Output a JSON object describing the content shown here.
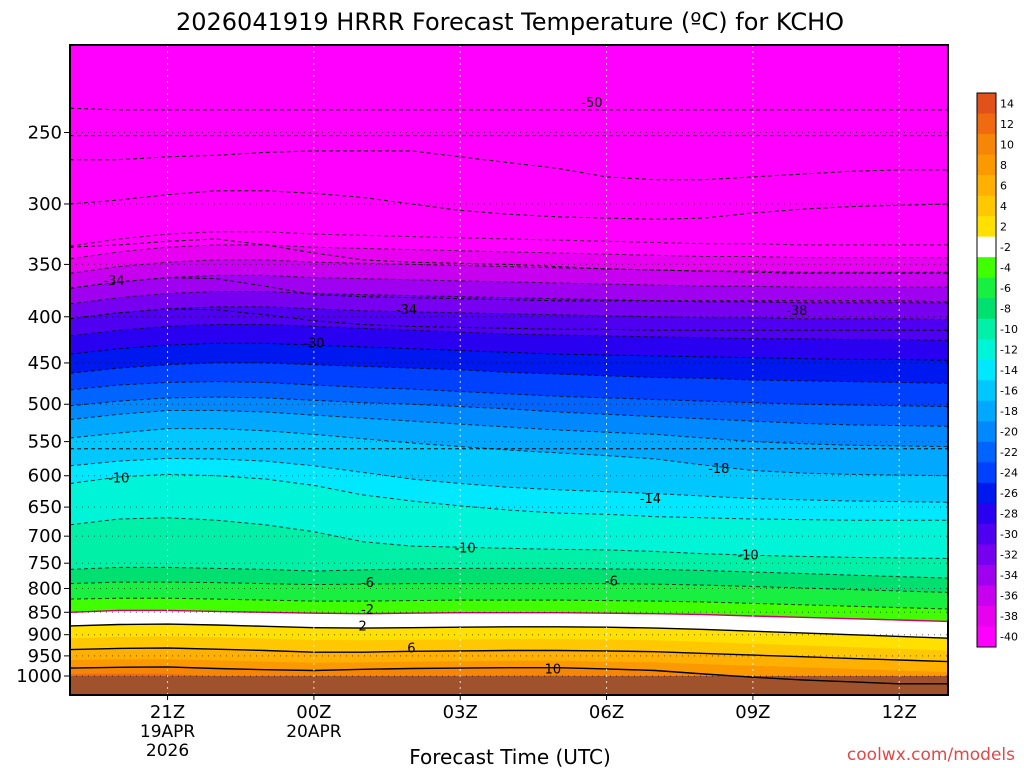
{
  "chart_data": {
    "type": "heatmap",
    "title": "2026041919 HRRR Forecast Temperature (ºC) for KCHO",
    "xlabel": "Forecast Time (UTC)",
    "ylabel": "",
    "x_ticks": [
      {
        "label": "21Z",
        "hour": 2,
        "sub": [
          "19APR",
          "2026"
        ]
      },
      {
        "label": "00Z",
        "hour": 5,
        "sub": [
          "20APR"
        ]
      },
      {
        "label": "03Z",
        "hour": 8,
        "sub": []
      },
      {
        "label": "06Z",
        "hour": 11,
        "sub": []
      },
      {
        "label": "09Z",
        "hour": 14,
        "sub": []
      },
      {
        "label": "12Z",
        "hour": 17,
        "sub": []
      }
    ],
    "y_ticks": [
      250,
      300,
      350,
      400,
      450,
      500,
      550,
      600,
      650,
      700,
      750,
      800,
      850,
      900,
      950,
      1000
    ],
    "x_range": [
      0,
      18
    ],
    "y_range_hpa": [
      200,
      1020
    ],
    "y_scale": "log",
    "surface_pressure_hpa": 1000,
    "surface_color": "#a0522d",
    "hours": [
      0,
      1,
      2,
      3,
      4,
      5,
      6,
      7,
      8,
      9,
      10,
      11,
      12,
      13,
      14,
      15,
      16,
      17,
      18
    ],
    "isotherms": [
      {
        "t": 14,
        "p": [
          1020,
          1020,
          1020,
          1020,
          1020,
          1020,
          1020,
          1020,
          1020,
          1020,
          1020,
          1020,
          1020,
          1020,
          1020,
          1020,
          1020,
          1020,
          1020
        ]
      },
      {
        "t": 12,
        "p": [
          995,
          994,
          995,
          1000,
          1003,
          1005,
          1003,
          1001,
          1000,
          999,
          999,
          1002,
          1008,
          1020,
          1020,
          1020,
          1020,
          1020,
          1020
        ]
      },
      {
        "t": 10,
        "p": [
          980,
          978,
          977,
          981,
          984,
          986,
          983,
          981,
          980,
          979,
          979,
          982,
          986,
          995,
          1003,
          1010,
          1015,
          1020,
          1020
        ]
      },
      {
        "t": 8,
        "p": [
          960,
          958,
          958,
          961,
          964,
          967,
          966,
          964,
          963,
          962,
          962,
          964,
          966,
          970,
          974,
          978,
          982,
          986,
          990
        ]
      },
      {
        "t": 6,
        "p": [
          935,
          932,
          931,
          934,
          937,
          941,
          941,
          939,
          938,
          937,
          937,
          938,
          940,
          944,
          948,
          952,
          956,
          960,
          964
        ]
      },
      {
        "t": 4,
        "p": [
          908,
          905,
          904,
          906,
          909,
          912,
          913,
          912,
          911,
          910,
          910,
          911,
          913,
          917,
          921,
          925,
          929,
          933,
          937
        ]
      },
      {
        "t": 2,
        "p": [
          880,
          877,
          876,
          878,
          881,
          884,
          885,
          884,
          883,
          882,
          882,
          883,
          885,
          888,
          892,
          896,
          900,
          904,
          908
        ]
      },
      {
        "t": -2,
        "p": [
          850,
          846,
          846,
          848,
          850,
          852,
          853,
          852,
          851,
          851,
          851,
          852,
          853,
          855,
          858,
          861,
          864,
          867,
          870
        ]
      },
      {
        "t": -4,
        "p": [
          822,
          820,
          820,
          822,
          824,
          826,
          826,
          825,
          824,
          824,
          824,
          825,
          826,
          828,
          831,
          834,
          837,
          840,
          843
        ]
      },
      {
        "t": -6,
        "p": [
          790,
          787,
          787,
          788,
          790,
          792,
          791,
          790,
          790,
          790,
          790,
          790,
          791,
          793,
          796,
          799,
          802,
          805,
          808
        ]
      },
      {
        "t": -8,
        "p": [
          762,
          758,
          758,
          760,
          762,
          765,
          763,
          761,
          760,
          760,
          760,
          761,
          762,
          764,
          767,
          770,
          773,
          776,
          779
        ]
      },
      {
        "t": -10,
        "p": [
          680,
          670,
          668,
          672,
          680,
          692,
          710,
          718,
          720,
          722,
          724,
          725,
          728,
          732,
          735,
          737,
          739,
          740,
          741
        ]
      },
      {
        "t": -12,
        "p": [
          612,
          602,
          598,
          600,
          605,
          615,
          630,
          640,
          648,
          655,
          660,
          662,
          666,
          668,
          670,
          671,
          672,
          672,
          672
        ]
      },
      {
        "t": -14,
        "p": [
          585,
          578,
          574,
          575,
          578,
          585,
          595,
          605,
          612,
          618,
          622,
          625,
          628,
          632,
          636,
          638,
          640,
          641,
          642
        ]
      },
      {
        "t": -16,
        "p": [
          545,
          538,
          532,
          532,
          535,
          540,
          546,
          552,
          557,
          562,
          566,
          570,
          575,
          584,
          592,
          596,
          598,
          599,
          600
        ]
      },
      {
        "t": -18,
        "p": [
          520,
          513,
          508,
          508,
          510,
          514,
          518,
          522,
          526,
          530,
          534,
          537,
          540,
          545,
          550,
          553,
          555,
          556,
          557
        ]
      },
      {
        "t": -20,
        "p": [
          502,
          496,
          492,
          491,
          492,
          495,
          498,
          500,
          503,
          506,
          510,
          513,
          516,
          519,
          522,
          525,
          527,
          528,
          529
        ]
      },
      {
        "t": -22,
        "p": [
          482,
          476,
          473,
          472,
          473,
          476,
          479,
          481,
          484,
          487,
          490,
          492,
          494,
          496,
          498,
          500,
          501,
          502,
          503
        ]
      },
      {
        "t": -24,
        "p": [
          462,
          456,
          452,
          450,
          450,
          452,
          454,
          456,
          458,
          461,
          463,
          465,
          467,
          468,
          470,
          471,
          472,
          473,
          474
        ]
      },
      {
        "t": -26,
        "p": [
          440,
          434,
          430,
          428,
          428,
          430,
          432,
          434,
          436,
          438,
          440,
          441,
          442,
          443,
          444,
          445,
          446,
          446,
          447
        ]
      },
      {
        "t": -28,
        "p": [
          420,
          414,
          410,
          408,
          408,
          410,
          412,
          414,
          416,
          418,
          419,
          420,
          421,
          422,
          423,
          423,
          424,
          424,
          425
        ]
      },
      {
        "t": -30,
        "p": [
          402,
          396,
          392,
          390,
          390,
          392,
          394,
          395,
          396,
          397,
          398,
          399,
          400,
          401,
          401,
          402,
          402,
          402,
          403
        ]
      },
      {
        "t": -32,
        "p": [
          387,
          381,
          377,
          375,
          375,
          377,
          378,
          379,
          380,
          381,
          382,
          383,
          384,
          385,
          385,
          386,
          386,
          386,
          386
        ]
      },
      {
        "t": -34,
        "p": [
          372,
          366,
          362,
          360,
          360,
          362,
          363,
          364,
          365,
          366,
          367,
          368,
          369,
          370,
          370,
          371,
          371,
          371,
          371
        ]
      },
      {
        "t": -36,
        "p": [
          358,
          352,
          348,
          346,
          346,
          348,
          349,
          350,
          351,
          352,
          353,
          354,
          355,
          356,
          356,
          357,
          357,
          357,
          357
        ]
      },
      {
        "t": -38,
        "p": [
          345,
          339,
          335,
          333,
          333,
          335,
          336,
          337,
          338,
          339,
          340,
          341,
          342,
          343,
          343,
          344,
          344,
          344,
          344
        ]
      },
      {
        "t": -40,
        "p": [
          334,
          328,
          324,
          322,
          322,
          324,
          325,
          326,
          327,
          328,
          329,
          330,
          331,
          332,
          332,
          333,
          333,
          333,
          333
        ]
      }
    ],
    "dashed_lines": [
      {
        "p": [
          560,
          560,
          560,
          560,
          560,
          560,
          560,
          560,
          560,
          560,
          560,
          560,
          560,
          560,
          560,
          560,
          560,
          560,
          560
        ]
      },
      {
        "p": [
          235,
          236,
          236,
          236,
          236,
          236,
          236,
          236,
          236,
          236,
          236,
          236,
          236,
          236,
          236,
          236,
          236,
          236,
          236
        ]
      },
      {
        "p": [
          252,
          252,
          252,
          252,
          252,
          252,
          252,
          252,
          252,
          252,
          252,
          252,
          252,
          252,
          252,
          252,
          252,
          252,
          252
        ]
      },
      {
        "p": [
          268,
          268,
          266,
          265,
          263,
          262,
          262,
          262,
          266,
          270,
          274,
          280,
          282,
          282,
          280,
          278,
          276,
          275,
          275
        ]
      },
      {
        "p": [
          300,
          297,
          293,
          290,
          290,
          292,
          295,
          300,
          305,
          308,
          310,
          311,
          312,
          311,
          307,
          304,
          302,
          301,
          300
        ]
      },
      {
        "p": [
          335,
          333,
          330,
          328,
          333,
          340,
          346,
          348,
          349,
          350,
          352,
          354,
          355,
          356,
          357,
          358,
          358,
          358,
          358
        ]
      },
      {
        "p": [
          372,
          366,
          362,
          363,
          370,
          378,
          380,
          381,
          382,
          383,
          384,
          384,
          384,
          384,
          384,
          384,
          384,
          384,
          385
        ]
      },
      {
        "p": [
          402,
          396,
          392,
          393,
          398,
          404,
          408,
          410,
          411,
          412,
          413,
          413,
          414,
          414,
          414,
          414,
          414,
          414,
          414
        ]
      }
    ],
    "solid_lines": [
      {
        "p": [
          880,
          877,
          876,
          878,
          881,
          884,
          885,
          884,
          883,
          882,
          882,
          883,
          885,
          888,
          892,
          896,
          900,
          904,
          908
        ],
        "color": "#000"
      },
      {
        "p": [
          935,
          932,
          931,
          934,
          937,
          941,
          941,
          939,
          938,
          937,
          937,
          938,
          940,
          944,
          948,
          952,
          956,
          960,
          964
        ],
        "color": "#000"
      },
      {
        "p": [
          980,
          978,
          977,
          981,
          984,
          986,
          983,
          981,
          980,
          979,
          979,
          982,
          986,
          995,
          1003,
          1010,
          1015,
          1020,
          1020
        ],
        "color": "#000"
      },
      {
        "p": [
          850,
          846,
          846,
          848,
          850,
          852,
          853,
          852,
          851,
          851,
          851,
          852,
          853,
          855,
          858,
          861,
          864,
          867,
          870
        ],
        "color": "#d0006f"
      }
    ],
    "contour_labels": [
      {
        "text": "-50",
        "hour": 10.7,
        "p": 232
      },
      {
        "text": "-34",
        "hour": 0.9,
        "p": 365
      },
      {
        "text": "-34",
        "hour": 6.9,
        "p": 393
      },
      {
        "text": "-38",
        "hour": 14.9,
        "p": 394
      },
      {
        "text": "-30",
        "hour": 5.0,
        "p": 428
      },
      {
        "text": "-18",
        "hour": 13.3,
        "p": 590
      },
      {
        "text": "-10",
        "hour": 1.0,
        "p": 604
      },
      {
        "text": "-14",
        "hour": 11.9,
        "p": 637
      },
      {
        "text": "-10",
        "hour": 8.1,
        "p": 722
      },
      {
        "text": "-10",
        "hour": 13.9,
        "p": 735
      },
      {
        "text": "-6",
        "hour": 6.1,
        "p": 789
      },
      {
        "text": "-6",
        "hour": 11.1,
        "p": 786
      },
      {
        "text": "-2",
        "hour": 6.1,
        "p": 845
      },
      {
        "text": "2",
        "hour": 6.0,
        "p": 881
      },
      {
        "text": "6",
        "hour": 7.0,
        "p": 932
      },
      {
        "text": "10",
        "hour": 9.9,
        "p": 983
      }
    ],
    "colorbar": {
      "levels": [
        14,
        12,
        10,
        8,
        6,
        4,
        2,
        -2,
        -4,
        -6,
        -8,
        -10,
        -12,
        -14,
        -16,
        -18,
        -20,
        -22,
        -24,
        -26,
        -28,
        -30,
        -32,
        -34,
        -36,
        -38,
        -40
      ],
      "colors": [
        "#e0521a",
        "#f06a10",
        "#f58608",
        "#fa9a00",
        "#ffb000",
        "#ffc800",
        "#ffe000",
        "#ffffff",
        "#40ff00",
        "#18ef40",
        "#00e070",
        "#00f0a8",
        "#00f4d8",
        "#00e8ff",
        "#00c8ff",
        "#00a8ff",
        "#0088ff",
        "#0064ff",
        "#0040ff",
        "#0018f0",
        "#2a00f0",
        "#5000f0",
        "#7800f0",
        "#a000f0",
        "#c800f0",
        "#e800f0",
        "#ff00ff"
      ],
      "labels": [
        "14",
        "12",
        "10",
        "8",
        "6",
        "4",
        "2",
        "-2",
        "-4",
        "-6",
        "-8",
        "-10",
        "-12",
        "-14",
        "-16",
        "-18",
        "-20",
        "-22",
        "-24",
        "-26",
        "-28",
        "-30",
        "-32",
        "-34",
        "-36",
        "-38",
        "-40"
      ]
    },
    "legend_placement": "right",
    "grid": true
  },
  "source_text": "coolwx.com/models"
}
